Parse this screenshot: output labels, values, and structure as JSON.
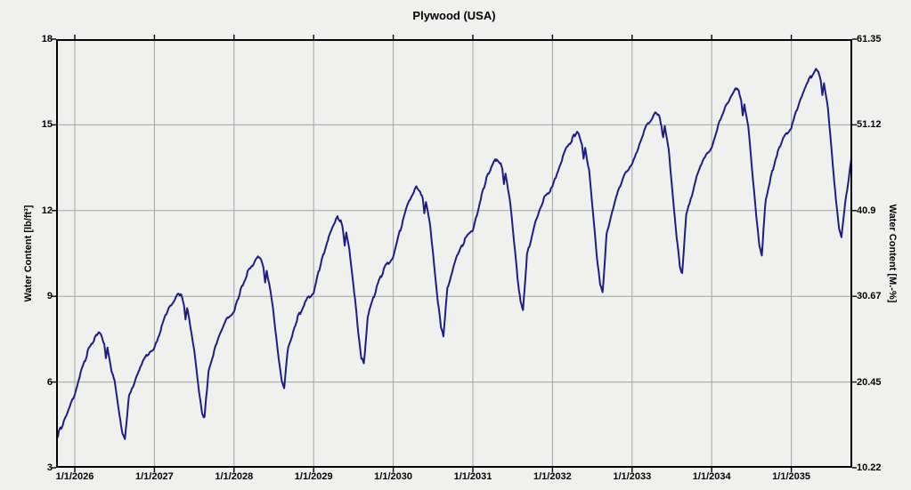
{
  "chart": {
    "title": "Plywood (USA)",
    "ylabel_left": "Water Content [lb/ft³]",
    "ylabel_right": "Water Content [M.-%]"
  },
  "style": {
    "background": "#f0f0ee",
    "grid_color": "#a3a3a3",
    "axis_color": "#000000",
    "line_color": "#1e1e82"
  },
  "chart_data": {
    "type": "line",
    "title": "Plywood (USA)",
    "grid": true,
    "x_axis": {
      "tick_years": [
        2026,
        2027,
        2028,
        2029,
        2030,
        2031,
        2032,
        2033,
        2034,
        2035
      ],
      "tick_labels": [
        "1/1/2026",
        "1/1/2027",
        "1/1/2028",
        "1/1/2029",
        "1/1/2030",
        "1/1/2031",
        "1/1/2032",
        "1/1/2033",
        "1/1/2034",
        "1/1/2035"
      ],
      "range": [
        2025.765,
        2035.765
      ]
    },
    "y_left": {
      "label": "Water Content [lb/ft³]",
      "ticks": [
        18,
        15,
        12,
        9,
        6,
        3
      ],
      "range": [
        3,
        18
      ]
    },
    "y_right": {
      "label": "Water Content [M.-%]",
      "tick_labels": [
        "61.35",
        "51.12",
        "40.9",
        "30.67",
        "20.45",
        "10.22"
      ],
      "range": [
        10.22,
        61.35
      ]
    },
    "series": [
      {
        "name": "Plywood (USA) water content",
        "color": "#1e1e82",
        "points": [
          [
            2025.77,
            4.05
          ],
          [
            2025.85,
            4.55
          ],
          [
            2025.93,
            5.1
          ],
          [
            2026.0,
            5.6
          ],
          [
            2026.08,
            6.35
          ],
          [
            2026.17,
            7.1
          ],
          [
            2026.24,
            7.45
          ],
          [
            2026.3,
            7.75
          ],
          [
            2026.34,
            7.6
          ],
          [
            2026.37,
            7.3
          ],
          [
            2026.39,
            6.8
          ],
          [
            2026.41,
            7.2
          ],
          [
            2026.46,
            6.4
          ],
          [
            2026.5,
            6.1
          ],
          [
            2026.56,
            4.85
          ],
          [
            2026.6,
            4.25
          ],
          [
            2026.63,
            4.05
          ],
          [
            2026.68,
            5.45
          ],
          [
            2026.8,
            6.4
          ],
          [
            2026.9,
            6.9
          ],
          [
            2027.0,
            7.15
          ],
          [
            2027.08,
            7.85
          ],
          [
            2027.17,
            8.55
          ],
          [
            2027.24,
            8.85
          ],
          [
            2027.3,
            9.15
          ],
          [
            2027.34,
            9.0
          ],
          [
            2027.37,
            8.7
          ],
          [
            2027.39,
            8.2
          ],
          [
            2027.41,
            8.6
          ],
          [
            2027.46,
            7.8
          ],
          [
            2027.5,
            7.15
          ],
          [
            2027.56,
            5.7
          ],
          [
            2027.6,
            4.95
          ],
          [
            2027.63,
            4.75
          ],
          [
            2027.68,
            6.45
          ],
          [
            2027.8,
            7.55
          ],
          [
            2027.9,
            8.2
          ],
          [
            2028.0,
            8.5
          ],
          [
            2028.08,
            9.2
          ],
          [
            2028.17,
            9.85
          ],
          [
            2028.24,
            10.15
          ],
          [
            2028.3,
            10.45
          ],
          [
            2028.34,
            10.3
          ],
          [
            2028.37,
            10.0
          ],
          [
            2028.39,
            9.5
          ],
          [
            2028.41,
            9.9
          ],
          [
            2028.46,
            9.1
          ],
          [
            2028.5,
            8.35
          ],
          [
            2028.56,
            6.8
          ],
          [
            2028.6,
            6.0
          ],
          [
            2028.63,
            5.75
          ],
          [
            2028.68,
            7.25
          ],
          [
            2028.8,
            8.25
          ],
          [
            2028.9,
            8.85
          ],
          [
            2029.0,
            9.1
          ],
          [
            2029.08,
            10.05
          ],
          [
            2029.17,
            10.95
          ],
          [
            2029.24,
            11.45
          ],
          [
            2029.3,
            11.75
          ],
          [
            2029.34,
            11.6
          ],
          [
            2029.37,
            11.3
          ],
          [
            2029.39,
            10.8
          ],
          [
            2029.41,
            11.2
          ],
          [
            2029.46,
            10.4
          ],
          [
            2029.5,
            9.45
          ],
          [
            2029.56,
            7.75
          ],
          [
            2029.6,
            6.85
          ],
          [
            2029.63,
            6.6
          ],
          [
            2029.68,
            8.3
          ],
          [
            2029.8,
            9.4
          ],
          [
            2029.9,
            10.05
          ],
          [
            2030.0,
            10.35
          ],
          [
            2030.08,
            11.25
          ],
          [
            2030.17,
            12.1
          ],
          [
            2030.24,
            12.55
          ],
          [
            2030.3,
            12.85
          ],
          [
            2030.34,
            12.7
          ],
          [
            2030.37,
            12.4
          ],
          [
            2030.39,
            11.9
          ],
          [
            2030.41,
            12.3
          ],
          [
            2030.46,
            11.5
          ],
          [
            2030.5,
            10.5
          ],
          [
            2030.56,
            8.8
          ],
          [
            2030.6,
            7.9
          ],
          [
            2030.63,
            7.65
          ],
          [
            2030.68,
            9.3
          ],
          [
            2030.8,
            10.4
          ],
          [
            2030.9,
            11.0
          ],
          [
            2031.0,
            11.3
          ],
          [
            2031.08,
            12.2
          ],
          [
            2031.17,
            13.1
          ],
          [
            2031.24,
            13.55
          ],
          [
            2031.3,
            13.85
          ],
          [
            2031.34,
            13.7
          ],
          [
            2031.37,
            13.4
          ],
          [
            2031.39,
            12.9
          ],
          [
            2031.41,
            13.3
          ],
          [
            2031.46,
            12.5
          ],
          [
            2031.5,
            11.45
          ],
          [
            2031.56,
            9.7
          ],
          [
            2031.6,
            8.75
          ],
          [
            2031.63,
            8.5
          ],
          [
            2031.68,
            10.45
          ],
          [
            2031.8,
            11.75
          ],
          [
            2031.9,
            12.45
          ],
          [
            2032.0,
            12.8
          ],
          [
            2032.08,
            13.5
          ],
          [
            2032.17,
            14.15
          ],
          [
            2032.24,
            14.45
          ],
          [
            2032.3,
            14.75
          ],
          [
            2032.34,
            14.6
          ],
          [
            2032.37,
            14.3
          ],
          [
            2032.39,
            13.8
          ],
          [
            2032.41,
            14.2
          ],
          [
            2032.46,
            13.4
          ],
          [
            2032.5,
            12.2
          ],
          [
            2032.56,
            10.35
          ],
          [
            2032.6,
            9.4
          ],
          [
            2032.63,
            9.1
          ],
          [
            2032.68,
            11.15
          ],
          [
            2032.8,
            12.5
          ],
          [
            2032.9,
            13.25
          ],
          [
            2033.0,
            13.6
          ],
          [
            2033.08,
            14.25
          ],
          [
            2033.17,
            14.9
          ],
          [
            2033.24,
            15.15
          ],
          [
            2033.3,
            15.45
          ],
          [
            2033.34,
            15.3
          ],
          [
            2033.37,
            15.0
          ],
          [
            2033.39,
            14.5
          ],
          [
            2033.41,
            14.9
          ],
          [
            2033.46,
            14.1
          ],
          [
            2033.5,
            12.9
          ],
          [
            2033.56,
            11.05
          ],
          [
            2033.6,
            10.1
          ],
          [
            2033.63,
            9.8
          ],
          [
            2033.68,
            11.8
          ],
          [
            2033.8,
            13.1
          ],
          [
            2033.9,
            13.85
          ],
          [
            2034.0,
            14.2
          ],
          [
            2034.08,
            14.95
          ],
          [
            2034.17,
            15.65
          ],
          [
            2034.24,
            16.0
          ],
          [
            2034.3,
            16.3
          ],
          [
            2034.34,
            16.15
          ],
          [
            2034.37,
            15.85
          ],
          [
            2034.39,
            15.35
          ],
          [
            2034.41,
            15.75
          ],
          [
            2034.46,
            14.95
          ],
          [
            2034.5,
            13.65
          ],
          [
            2034.56,
            11.75
          ],
          [
            2034.6,
            10.75
          ],
          [
            2034.63,
            10.45
          ],
          [
            2034.68,
            12.45
          ],
          [
            2034.8,
            13.8
          ],
          [
            2034.9,
            14.55
          ],
          [
            2035.0,
            14.9
          ],
          [
            2035.08,
            15.6
          ],
          [
            2035.17,
            16.3
          ],
          [
            2035.24,
            16.65
          ],
          [
            2035.3,
            16.95
          ],
          [
            2035.34,
            16.8
          ],
          [
            2035.37,
            16.5
          ],
          [
            2035.39,
            16.0
          ],
          [
            2035.41,
            16.4
          ],
          [
            2035.46,
            15.6
          ],
          [
            2035.5,
            14.3
          ],
          [
            2035.56,
            12.35
          ],
          [
            2035.6,
            11.35
          ],
          [
            2035.63,
            11.05
          ],
          [
            2035.68,
            12.3
          ],
          [
            2035.73,
            13.3
          ],
          [
            2035.765,
            14.0
          ]
        ]
      }
    ],
    "annual_summary": {
      "peak_values_by_year": [
        7.75,
        9.15,
        10.45,
        11.75,
        12.85,
        13.85,
        14.75,
        15.45,
        16.3,
        16.95
      ],
      "trough_values_by_year": [
        4.05,
        4.75,
        5.75,
        6.6,
        7.65,
        8.5,
        9.1,
        9.8,
        10.45,
        11.05
      ],
      "peak_month": "April",
      "trough_month": "August"
    }
  }
}
